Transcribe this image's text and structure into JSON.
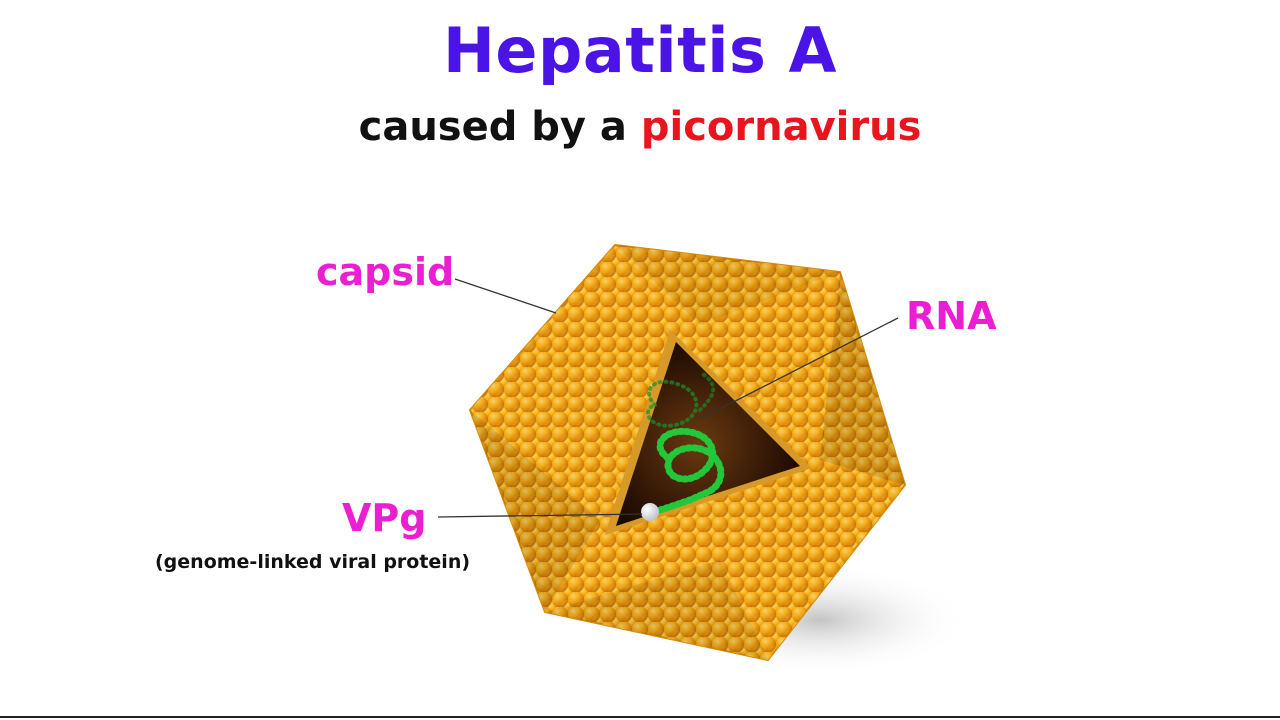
{
  "title": "Hepatitis A",
  "subtitle": {
    "prefix": "caused by a ",
    "highlight": "picornavirus"
  },
  "labels": {
    "capsid": "capsid",
    "rna": "RNA",
    "vpg": "VPg",
    "vpg_caption": "(genome-linked viral protein)"
  },
  "colors": {
    "title": "#4b14e6",
    "highlight": "#e8141e",
    "label": "#ec1ed2",
    "capsid": "#f2a20c",
    "rna": "#22c83a"
  }
}
